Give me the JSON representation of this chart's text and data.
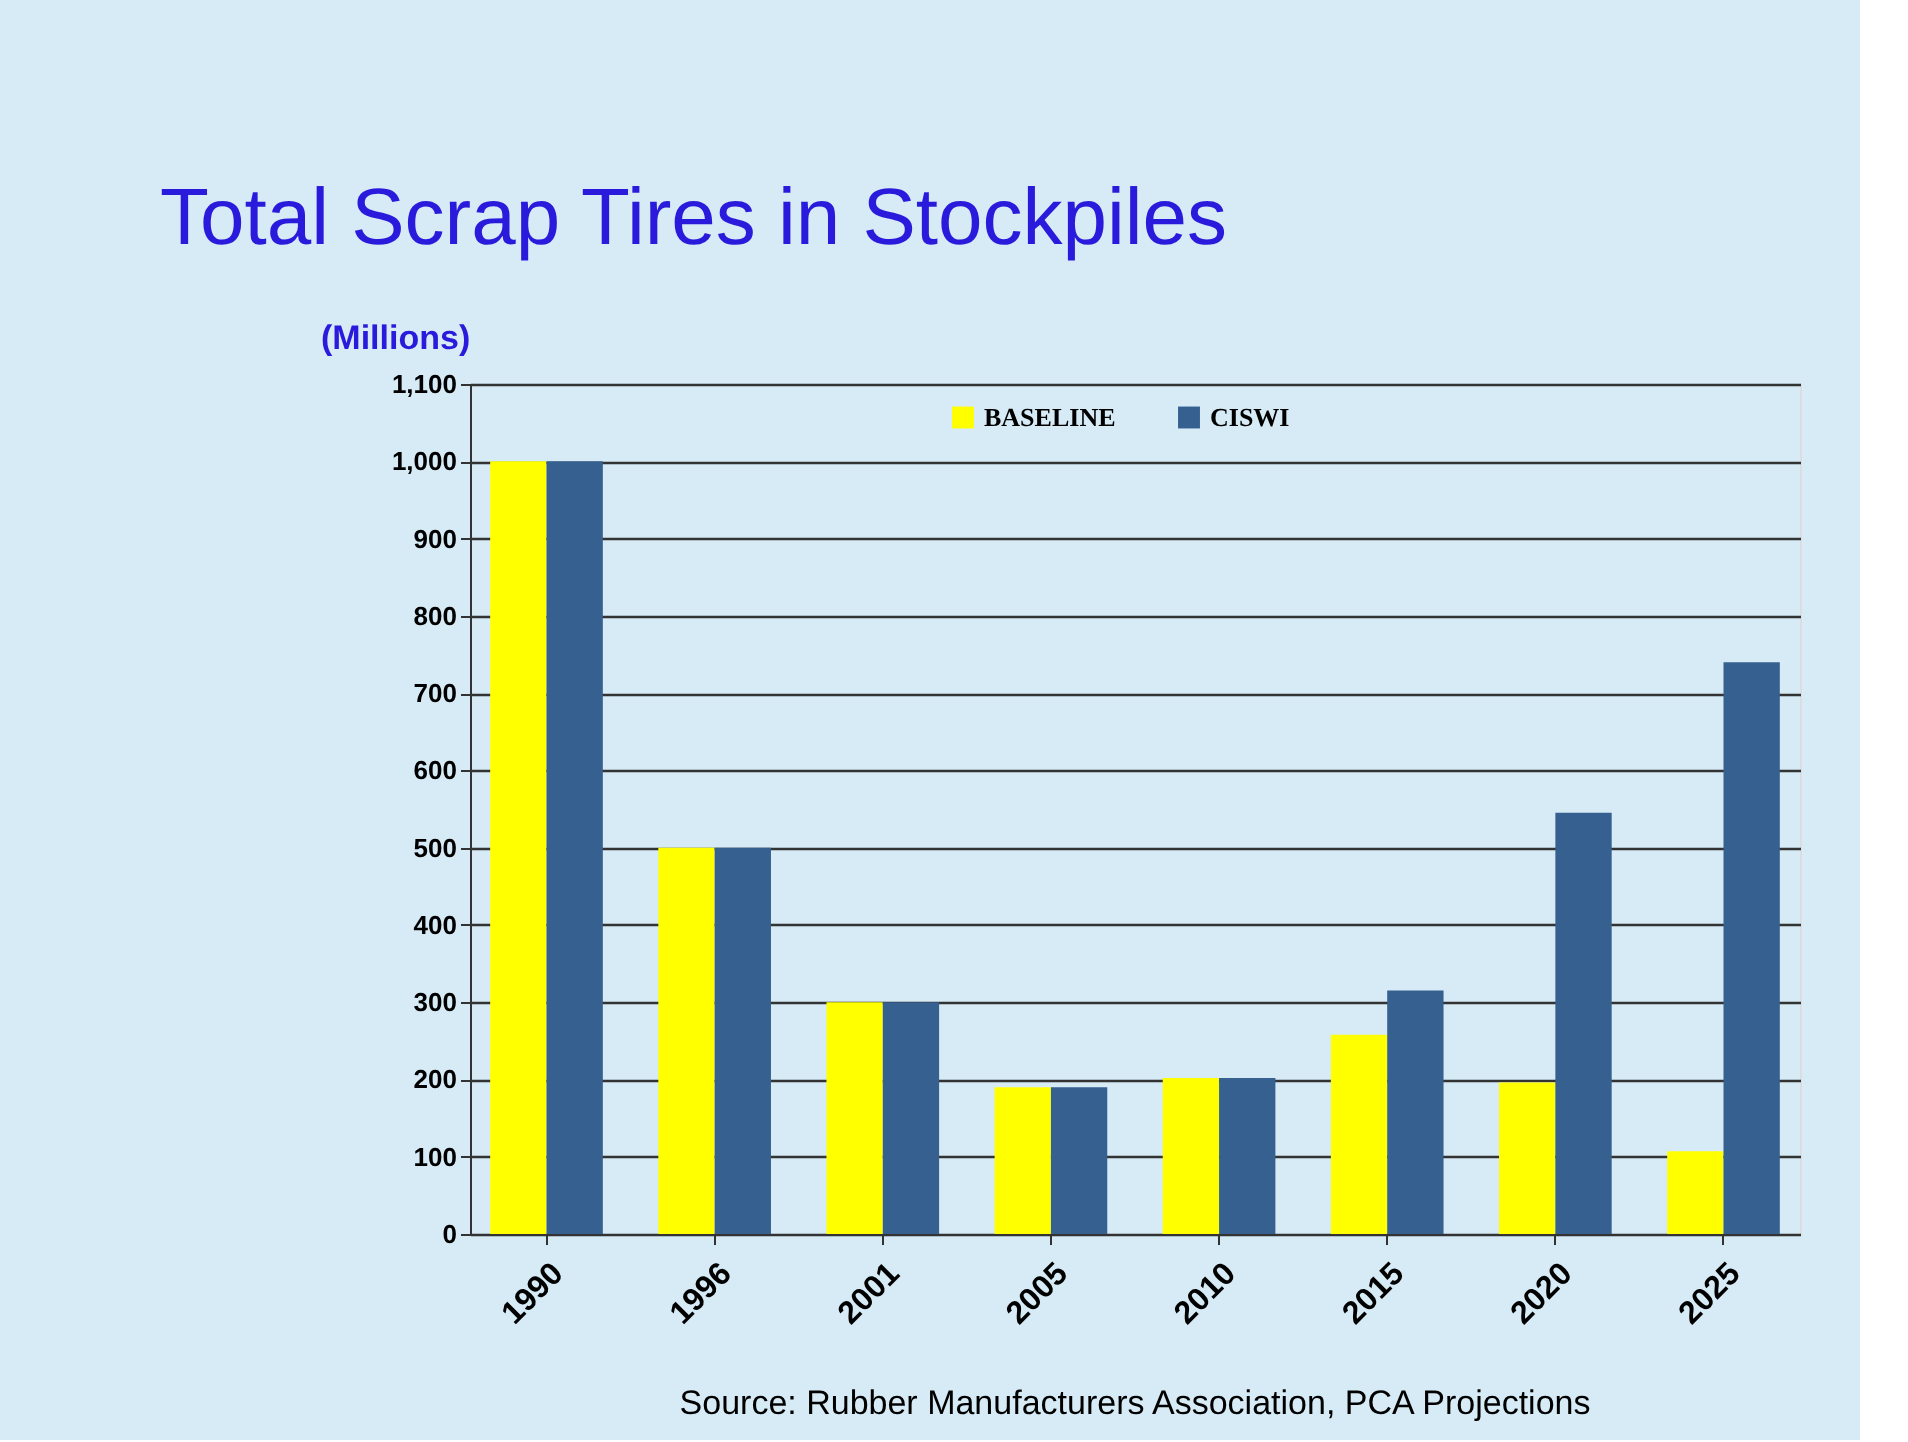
{
  "chart_data": {
    "type": "bar",
    "title": "Total Scrap Tires in Stockpiles",
    "ylabel": "(Millions)",
    "categories": [
      "1990",
      "1996",
      "2001",
      "2005",
      "2010",
      "2015",
      "2020",
      "2025"
    ],
    "series": [
      {
        "name": "BASELINE",
        "color": "#ffff00",
        "values": [
          1000,
          500,
          300,
          190,
          202,
          258,
          196,
          107
        ]
      },
      {
        "name": "CISWI",
        "color": "#36608f",
        "values": [
          1000,
          500,
          300,
          190,
          202,
          315,
          545,
          740
        ]
      }
    ],
    "ylim": [
      0,
      1100
    ],
    "yticks": [
      0,
      100,
      200,
      300,
      400,
      500,
      600,
      700,
      800,
      900,
      {
        "value": 1000,
        "label": "1,000"
      },
      {
        "value": 1100,
        "label": "1,100"
      }
    ],
    "grid": "y",
    "legend": "top",
    "annotations": [
      "Source: Rubber Manufacturers Association, PCA Projections"
    ]
  }
}
